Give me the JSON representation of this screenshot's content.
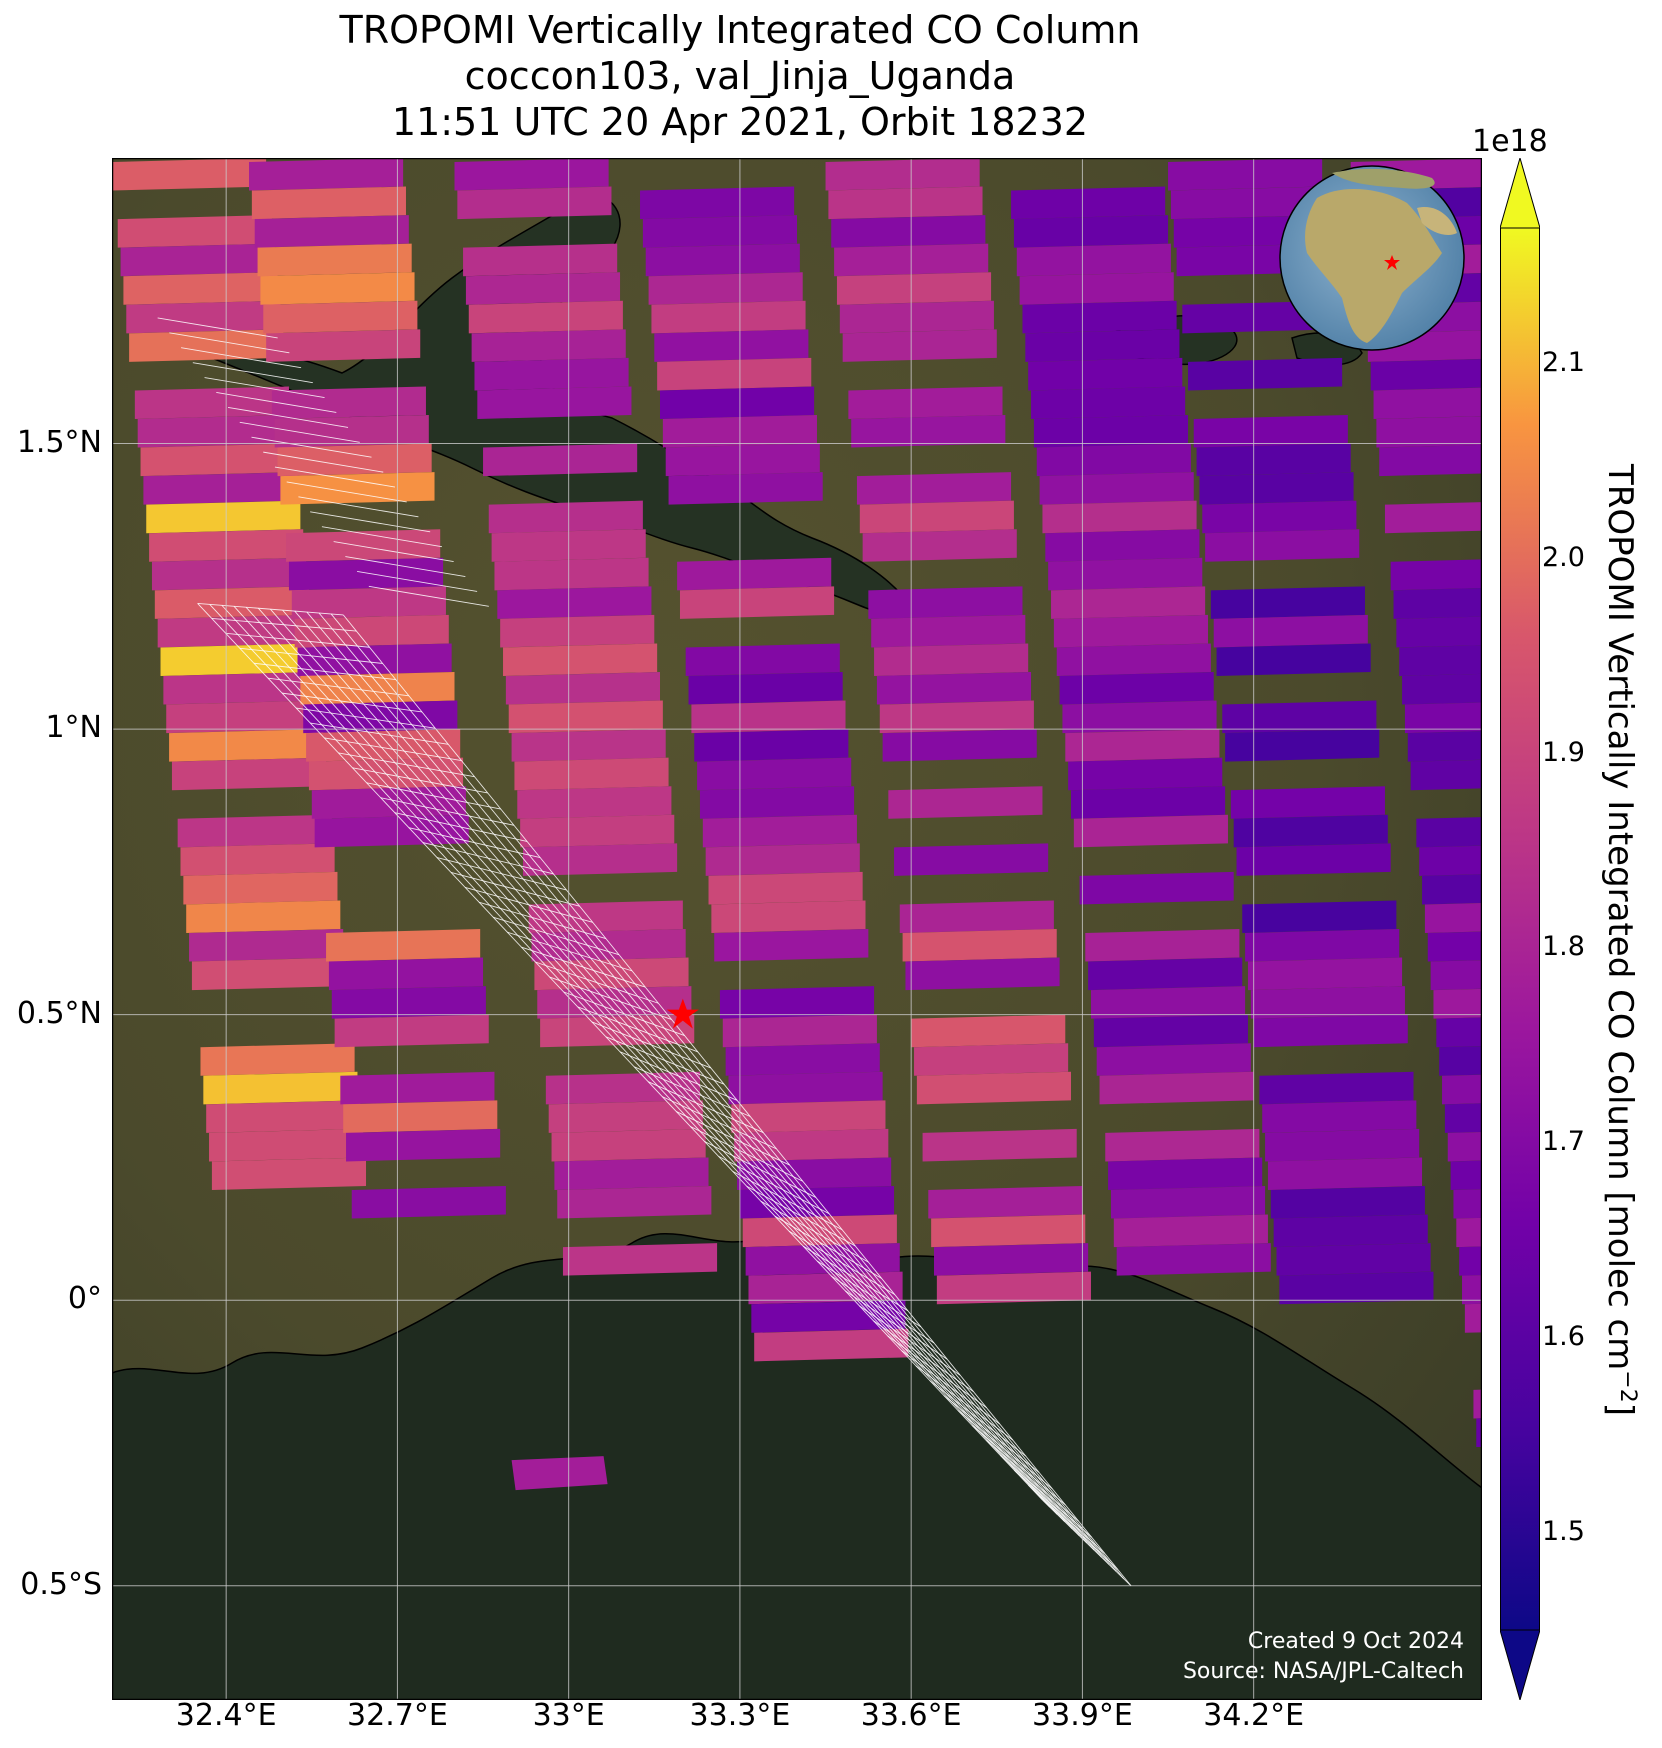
{
  "title": {
    "line1": "TROPOMI Vertically Integrated CO Column",
    "line2": "coccon103, val_Jinja_Uganda",
    "line3": "11:51 UTC 20 Apr 2021, Orbit 18232"
  },
  "map": {
    "extent": {
      "lon_min": 32.2,
      "lon_max": 34.6,
      "lat_min": -0.7,
      "lat_max": 2.0
    },
    "x_ticks": [
      {
        "lon": 32.4,
        "label": "32.4°E"
      },
      {
        "lon": 32.7,
        "label": "32.7°E"
      },
      {
        "lon": 33.0,
        "label": "33°E"
      },
      {
        "lon": 33.3,
        "label": "33.3°E"
      },
      {
        "lon": 33.6,
        "label": "33.6°E"
      },
      {
        "lon": 33.9,
        "label": "33.9°E"
      },
      {
        "lon": 34.2,
        "label": "34.2°E"
      }
    ],
    "y_ticks": [
      {
        "lat": 1.5,
        "label": "1.5°N"
      },
      {
        "lat": 1.0,
        "label": "1°N"
      },
      {
        "lat": 0.5,
        "label": "0.5°N"
      },
      {
        "lat": 0.0,
        "label": "0°"
      },
      {
        "lat": -0.5,
        "label": "0.5°S"
      }
    ],
    "site": {
      "lon": 33.2,
      "lat": 0.5,
      "marker": "red-star"
    },
    "gridlines": true,
    "inset": "globe-locator-africa"
  },
  "colorbar": {
    "min": 1.45,
    "max": 2.17,
    "exponent_label": "1e18",
    "ticks": [
      "1.5",
      "1.6",
      "1.7",
      "1.8",
      "1.9",
      "2.0",
      "2.1"
    ],
    "label": "TROPOMI Vertically Integrated CO Column [molec cm",
    "label_sup": "−2",
    "label_end": "]",
    "colormap": "plasma"
  },
  "credits": {
    "created": "Created 9 Oct 2024",
    "source": "Source: NASA/JPL-Caltech"
  },
  "colors": {
    "land": "#4a4a2c",
    "lake": "#1d2a1e",
    "site_marker": "#ff0000",
    "track": "#ffffff"
  }
}
